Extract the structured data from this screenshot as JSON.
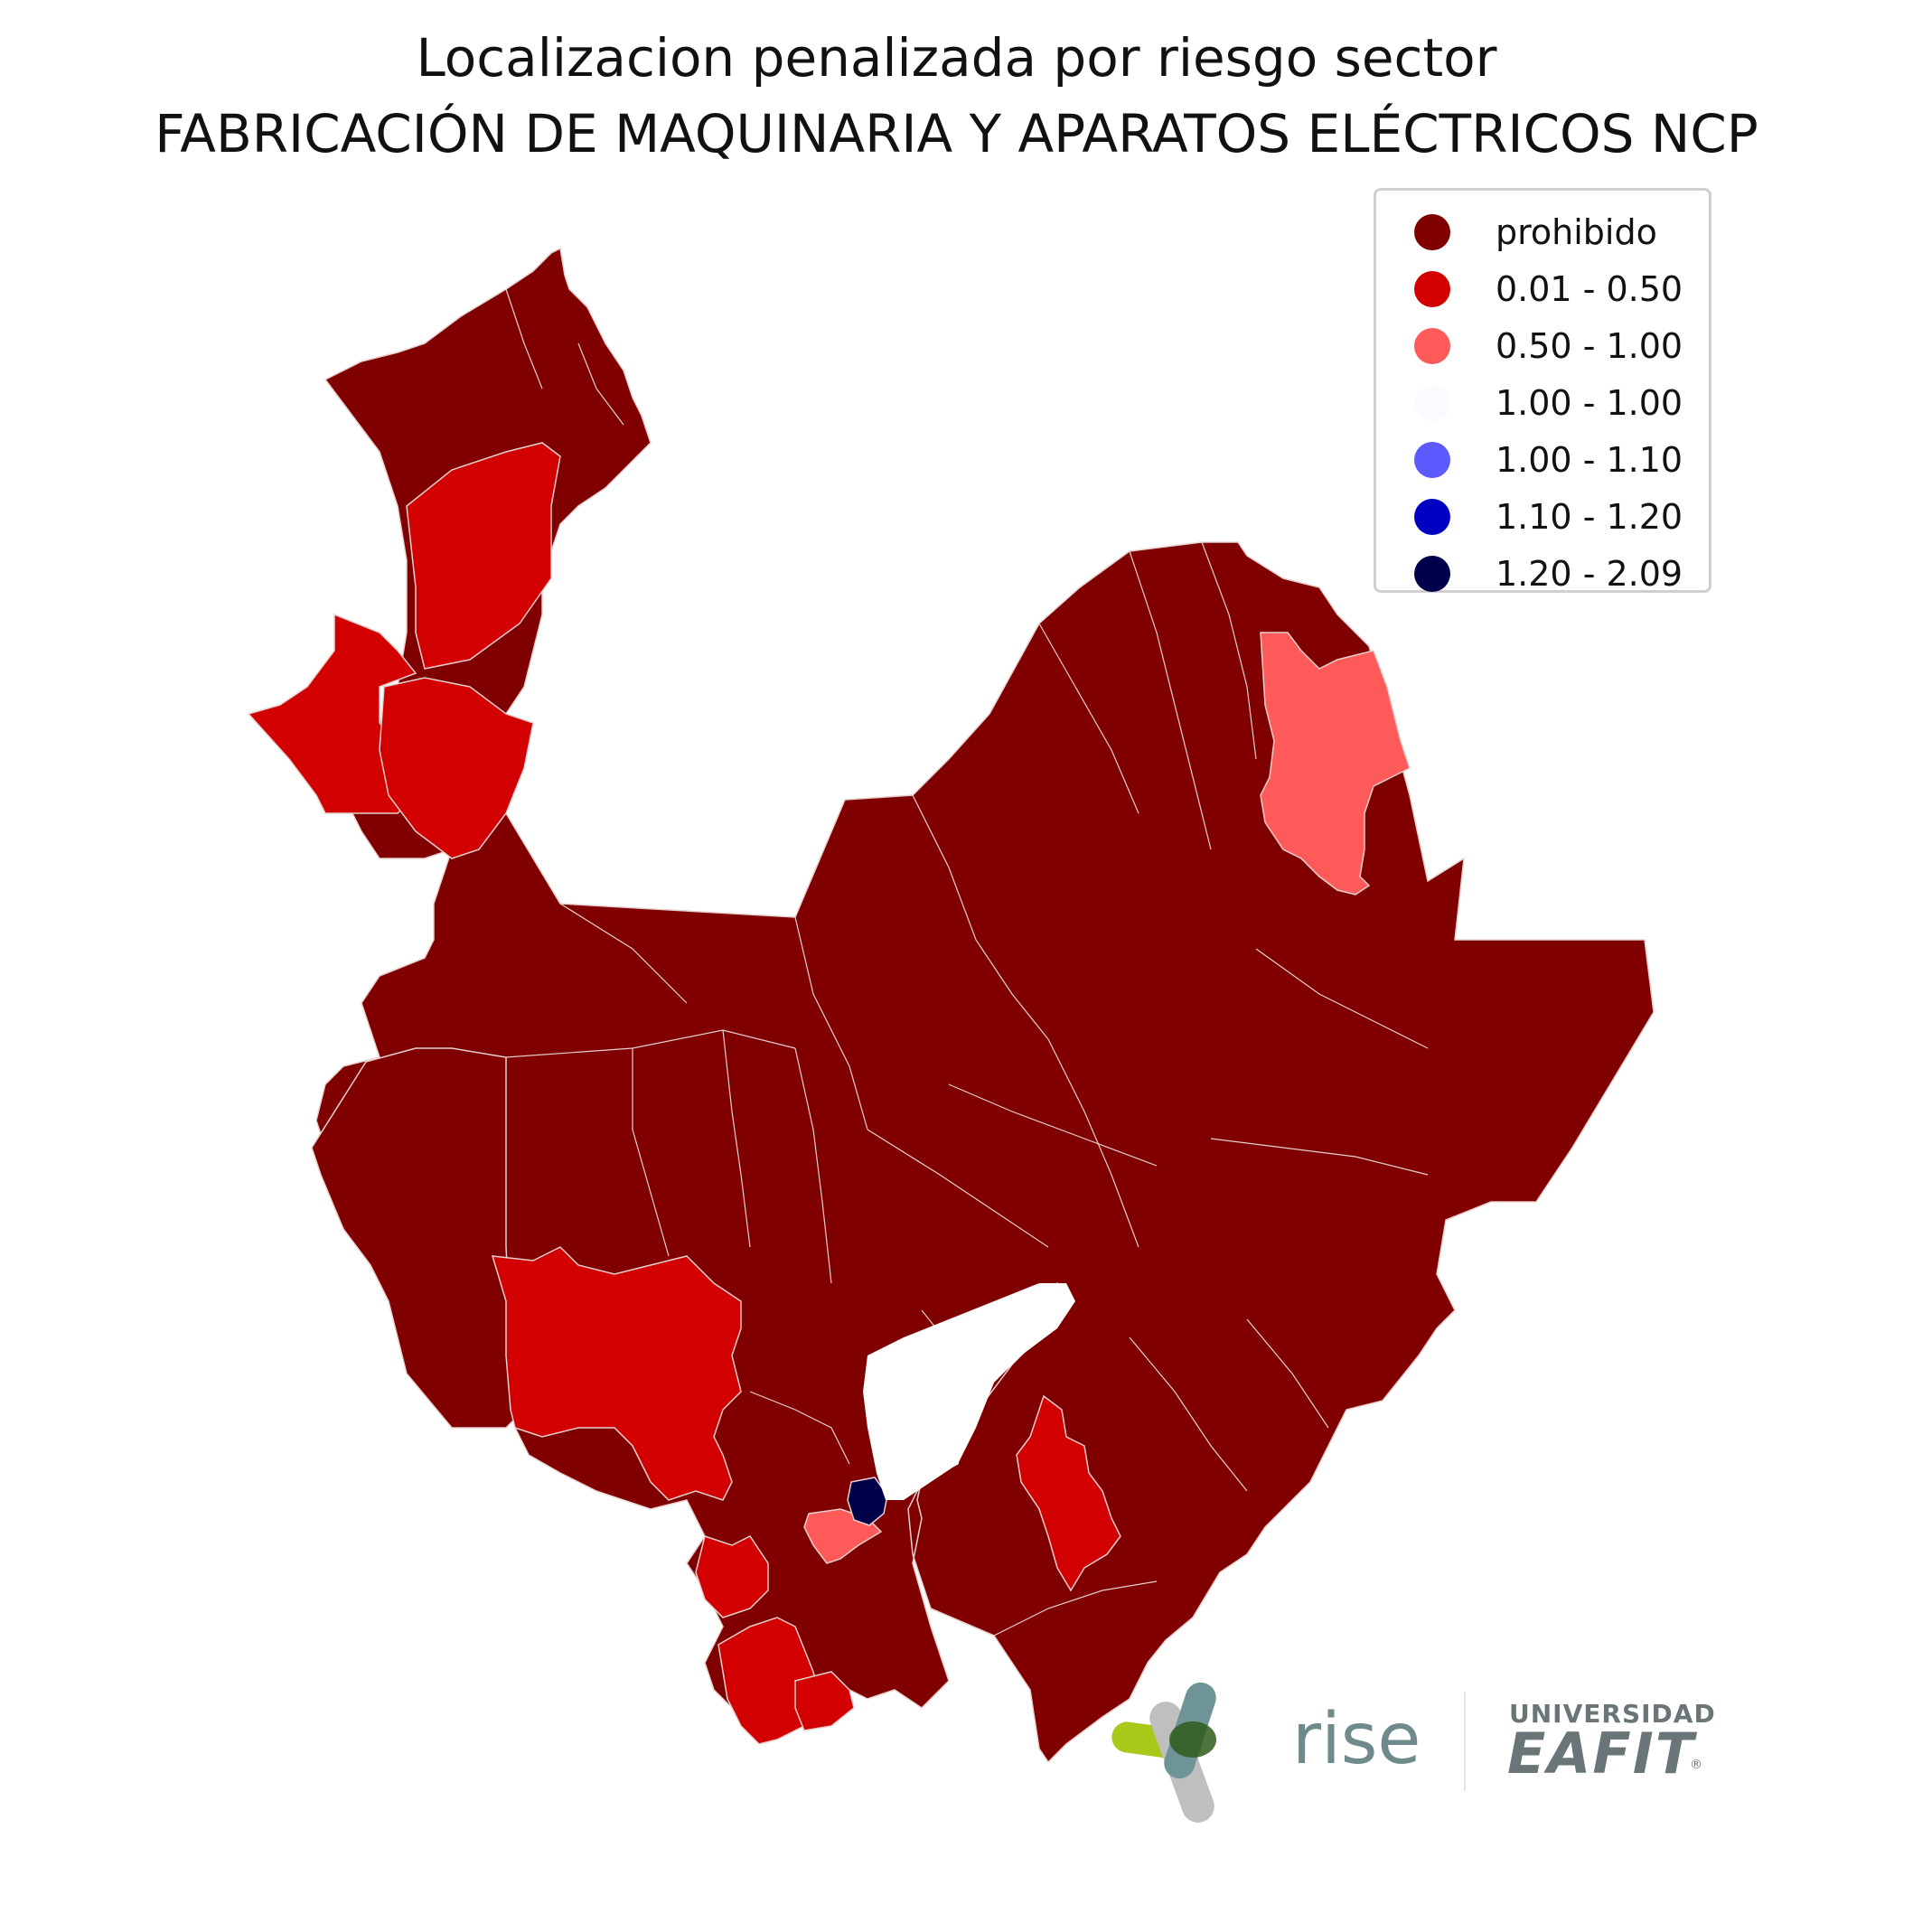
{
  "title": {
    "line1": "Localizacion penalizada por riesgo sector",
    "line2": "FABRICACIÓN DE MAQUINARIA Y APARATOS ELÉCTRICOS NCP"
  },
  "legend": {
    "items": [
      {
        "label": "prohibido",
        "color": "#800000"
      },
      {
        "label": "0.01 - 0.50",
        "color": "#d20000"
      },
      {
        "label": "0.50 - 1.00",
        "color": "#ff5a5a"
      },
      {
        "label": "1.00 - 1.00",
        "color": "#fbfbff"
      },
      {
        "label": "1.00 - 1.10",
        "color": "#5a5aff"
      },
      {
        "label": "1.10 - 1.20",
        "color": "#0000c2"
      },
      {
        "label": "1.20 - 2.09",
        "color": "#00004a"
      }
    ]
  },
  "map": {
    "region_classes": {
      "northwest_coast_1": "0.01 - 0.50",
      "northwest_coast_2": "0.01 - 0.50",
      "northwest_coast_3": "0.01 - 0.50",
      "northeast_border": "0.50 - 1.00",
      "west_central": "0.01 - 0.50",
      "southwest_1": "0.01 - 0.50",
      "southwest_2": "0.01 - 0.50",
      "southwest_3": "0.01 - 0.50",
      "south_central": "0.50 - 1.00",
      "central_hub": "1.20 - 2.09",
      "east_south": "0.01 - 0.50",
      "rest": "prohibido"
    }
  },
  "logos": {
    "rise": "rise",
    "eafit_top": "UNIVERSIDAD",
    "eafit_main": "EAFIT",
    "eafit_mark": "®"
  }
}
